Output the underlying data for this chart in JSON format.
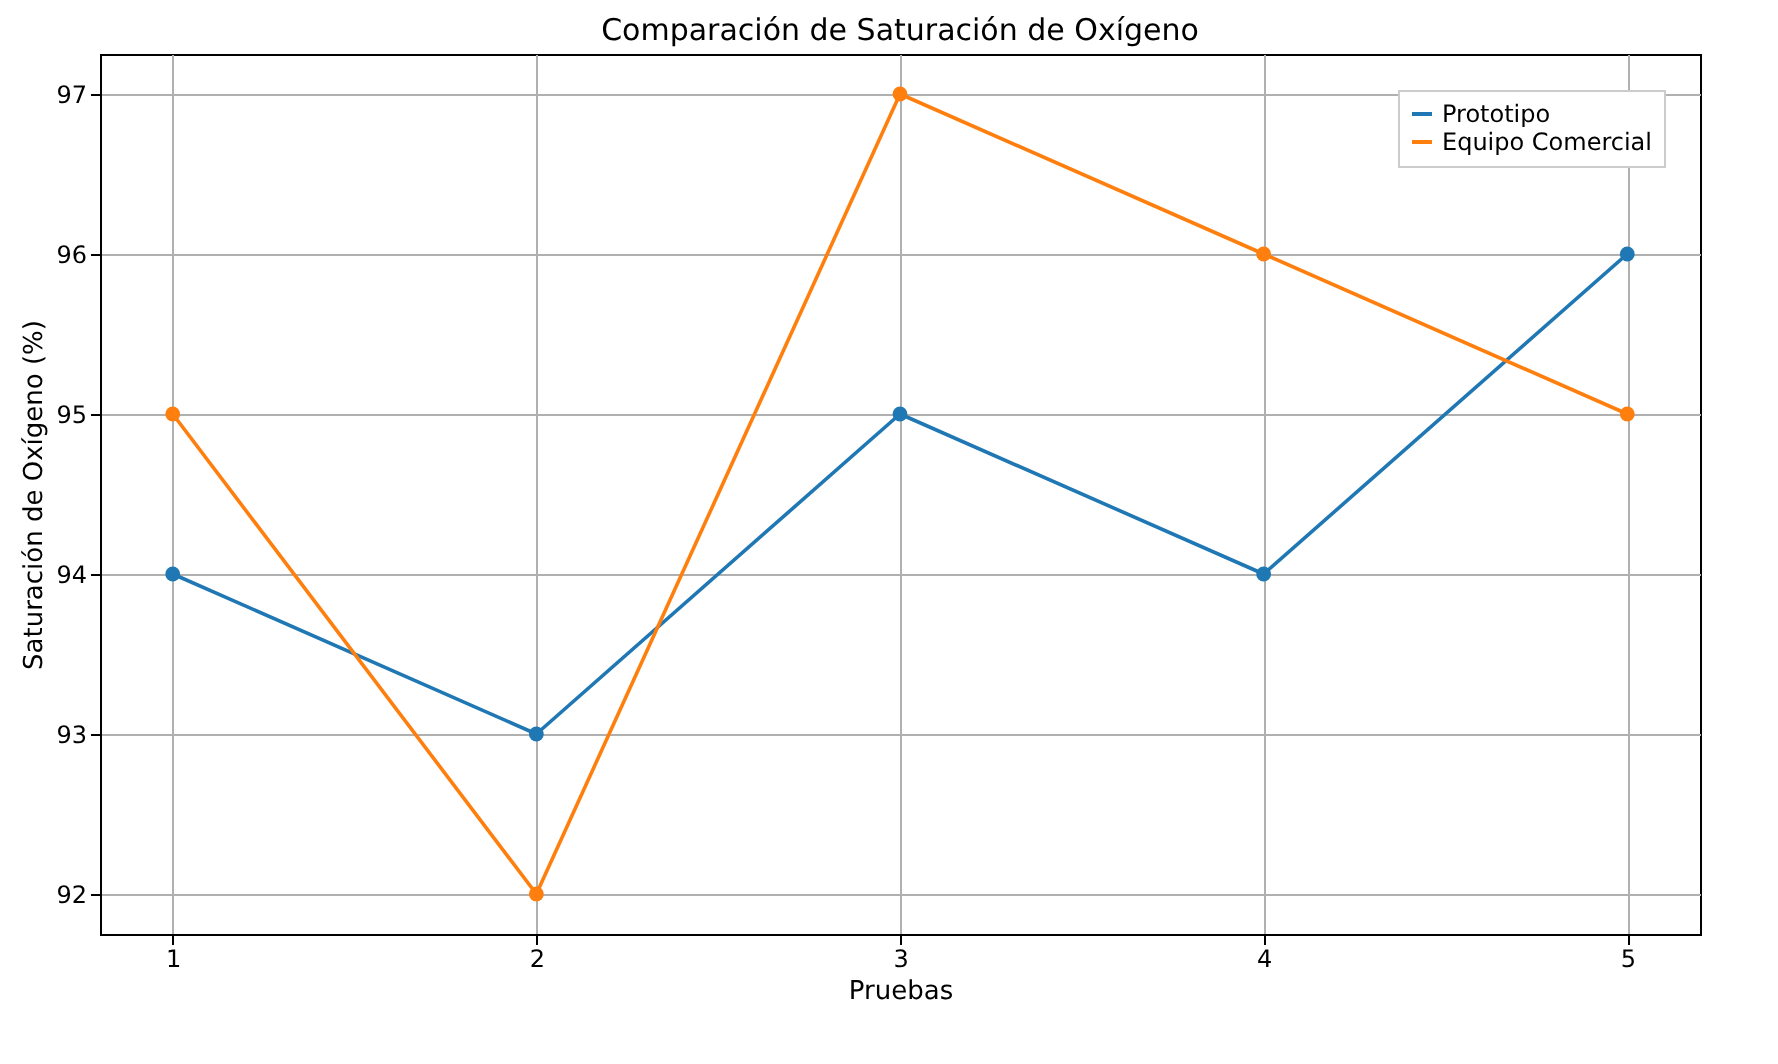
{
  "chart_data": {
    "type": "line",
    "title": "Comparación de Saturación de Oxígeno",
    "xlabel": "Pruebas",
    "ylabel": "Saturación de Oxígeno (%)",
    "x": [
      1,
      2,
      3,
      4,
      5
    ],
    "series": [
      {
        "name": "Prototipo",
        "color": "#1f77b4",
        "values": [
          94,
          93,
          95,
          94,
          96
        ]
      },
      {
        "name": "Equipo Comercial",
        "color": "#ff7f0e",
        "values": [
          95,
          92,
          97,
          96,
          95
        ]
      }
    ],
    "xlim": [
      0.8,
      5.2
    ],
    "xticks": [
      1,
      2,
      3,
      4,
      5
    ],
    "ylim": [
      91.75,
      97.25
    ],
    "yticks": [
      92,
      93,
      94,
      95,
      96,
      97
    ],
    "grid": true,
    "legend": "top right",
    "marker": "circle",
    "line_style": "solid"
  }
}
